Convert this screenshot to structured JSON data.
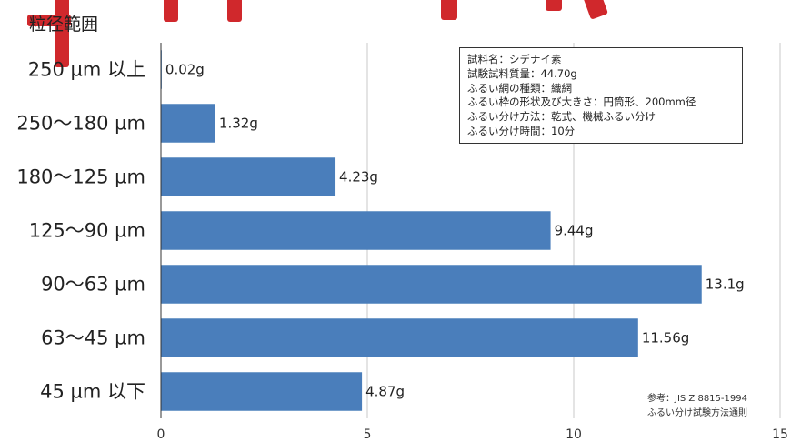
{
  "chart_data": {
    "type": "bar",
    "orientation": "horizontal",
    "title": "粒径範囲",
    "categories": [
      "250 µm 以上",
      "250〜180 µm",
      "180〜125 µm",
      "125〜90 µm",
      "90〜63 µm",
      "63〜45 µm",
      "45 µm 以下"
    ],
    "values": [
      0.02,
      1.32,
      4.23,
      9.44,
      13.1,
      11.56,
      4.87
    ],
    "value_labels": [
      "0.02g",
      "1.32g",
      "4.23g",
      "9.44g",
      "13.1g",
      "11.56g",
      "4.87g"
    ],
    "xlim": [
      0,
      15
    ],
    "xticks": [
      0,
      5,
      10,
      15
    ],
    "grid": true,
    "bar_color": "#4a7ebb"
  },
  "info_box": {
    "lines": [
      "試料名：シデナイ素",
      "試験試料質量：44.70g",
      "ふるい網の種類：織網",
      "ふるい枠の形状及び大きさ：円筒形、200mm径",
      "ふるい分け方法：乾式、機械ふるい分け",
      "ふるい分け時間：10分"
    ]
  },
  "reference": {
    "line1": "参考：JIS Z 8815-1994",
    "line2": "ふるい分け試験方法通則"
  },
  "banner": {
    "color": "#d0282c"
  }
}
